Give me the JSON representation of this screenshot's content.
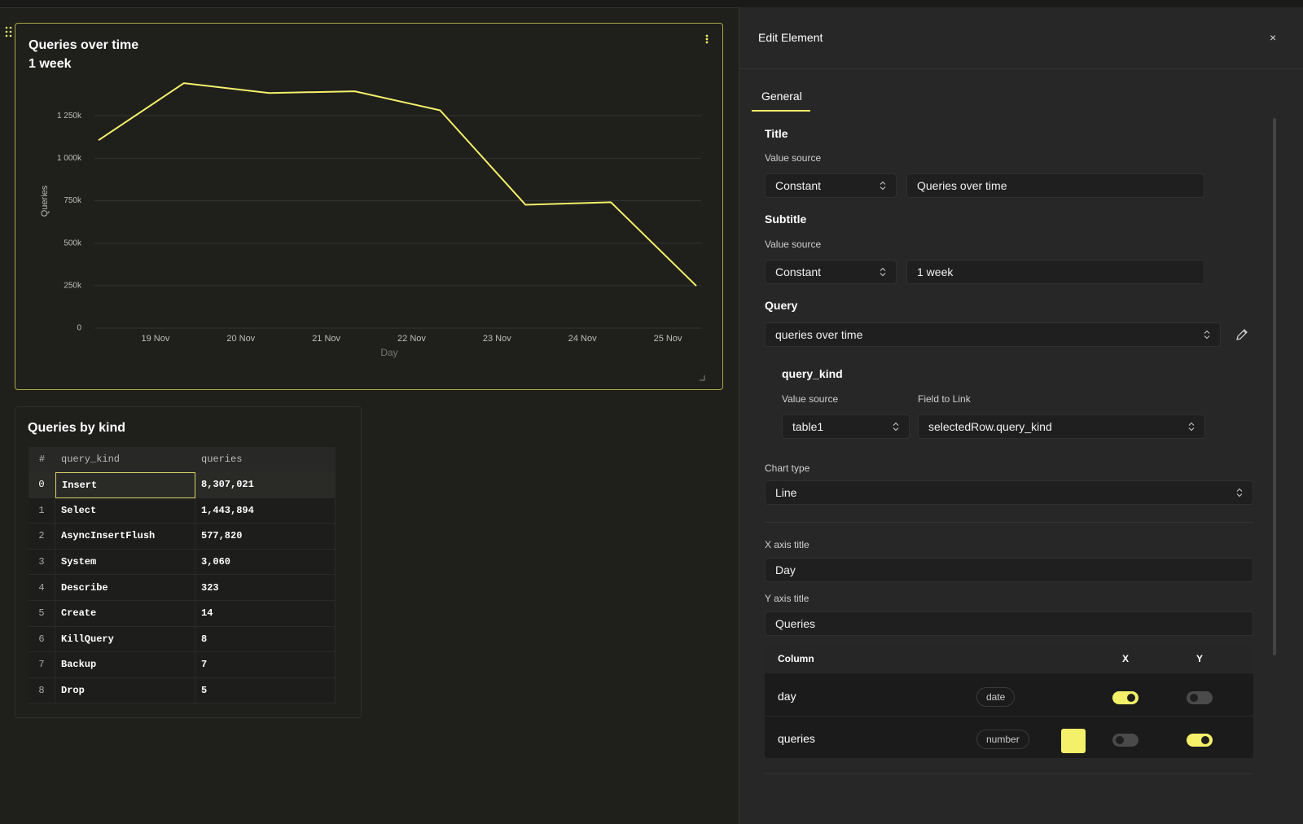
{
  "chart_data": {
    "type": "line",
    "title": "Queries over time",
    "subtitle": "1 week",
    "x_axis_label": "Day",
    "y_axis_label": "Queries",
    "categories": [
      null,
      "19 Nov",
      "20 Nov",
      "21 Nov",
      "22 Nov",
      "23 Nov",
      "24 Nov",
      "25 Nov"
    ],
    "values": [
      1106000,
      1442000,
      1384000,
      1394000,
      1282000,
      726000,
      741000,
      249000
    ],
    "color": "#f5f06a",
    "ylim": [
      0,
      1500000
    ],
    "yticks": [
      0,
      {
        "value": 250000,
        "label": "250k"
      },
      {
        "value": 500000,
        "label": "500k"
      },
      {
        "value": 750000,
        "label": "750k"
      },
      {
        "value": 1000000,
        "label": "1 000k"
      },
      {
        "value": 1250000,
        "label": "1 250k"
      }
    ],
    "grid": true
  },
  "table": {
    "title": "Queries by kind",
    "columns": [
      "#",
      "query_kind",
      "queries"
    ],
    "rows": [
      [
        0,
        "Insert",
        "8,307,021"
      ],
      [
        1,
        "Select",
        "1,443,894"
      ],
      [
        2,
        "AsyncInsertFlush",
        "577,820"
      ],
      [
        3,
        "System",
        "3,060"
      ],
      [
        4,
        "Describe",
        "323"
      ],
      [
        5,
        "Create",
        "14"
      ],
      [
        6,
        "KillQuery",
        "8"
      ],
      [
        7,
        "Backup",
        "7"
      ],
      [
        8,
        "Drop",
        "5"
      ]
    ]
  },
  "panel": {
    "title": "Edit Element",
    "close": "×",
    "tabs": [
      "General"
    ],
    "title_section": {
      "heading": "Title",
      "value_source_label": "Value source",
      "source": "Constant",
      "value": "Queries over time"
    },
    "subtitle_section": {
      "heading": "Subtitle",
      "value_source_label": "Value source",
      "source": "Constant",
      "value": "1 week"
    },
    "query_section": {
      "heading": "Query",
      "query": "queries over time",
      "param": {
        "name": "query_kind",
        "value_source_label": "Value source",
        "field_label": "Field to Link",
        "source": "table1",
        "field": "selectedRow.query_kind"
      }
    },
    "chart_type": {
      "label": "Chart type",
      "value": "Line"
    },
    "x_axis_title": {
      "label": "X axis title",
      "value": "Day"
    },
    "y_axis_title": {
      "label": "Y axis title",
      "value": "Queries"
    },
    "columns": {
      "headers": [
        "Column",
        "X",
        "Y"
      ],
      "rows": [
        {
          "name": "day",
          "type": "date"
        },
        {
          "name": "queries",
          "type": "number"
        }
      ]
    }
  }
}
